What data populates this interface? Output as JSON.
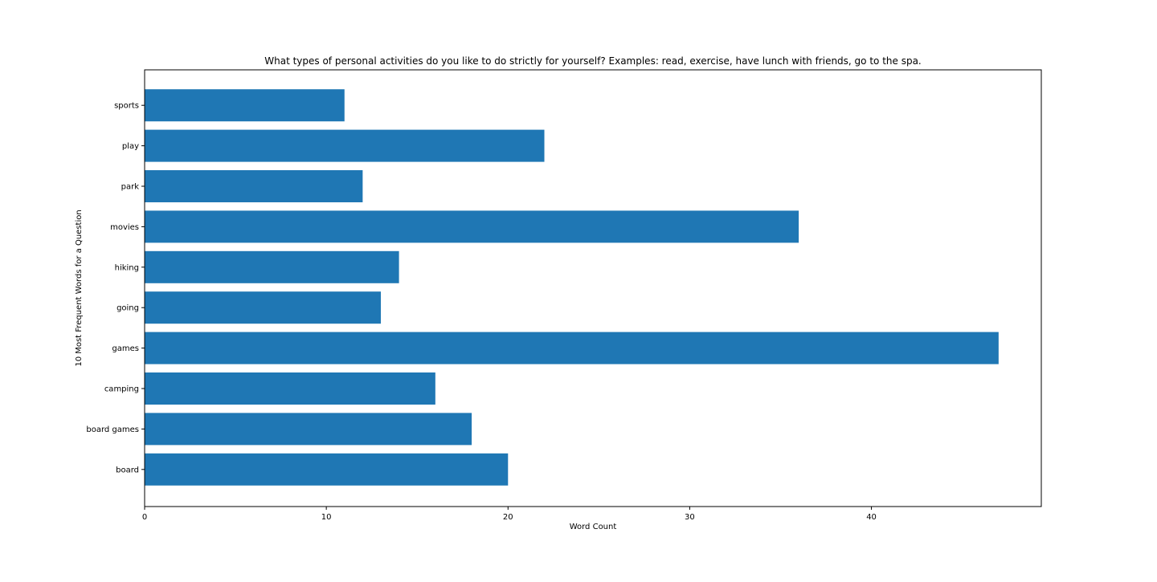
{
  "chart_data": {
    "type": "bar",
    "orientation": "horizontal",
    "title": "What types of personal activities do you like to do strictly for yourself? Examples: read, exercise, have lunch with friends, go to the spa.",
    "xlabel": "Word Count",
    "ylabel": "10 Most Frequent Words for a Question",
    "categories": [
      "board",
      "board games",
      "camping",
      "games",
      "going",
      "hiking",
      "movies",
      "park",
      "play",
      "sports"
    ],
    "values": [
      20,
      18,
      16,
      47,
      13,
      14,
      36,
      12,
      22,
      11
    ],
    "xlim": [
      0,
      49.35
    ],
    "xticks": [
      0,
      10,
      20,
      30,
      40
    ],
    "grid": false,
    "legend": "none",
    "colors": {
      "bar": "#1f77b4",
      "axes": "#000000",
      "background": "#ffffff"
    }
  }
}
